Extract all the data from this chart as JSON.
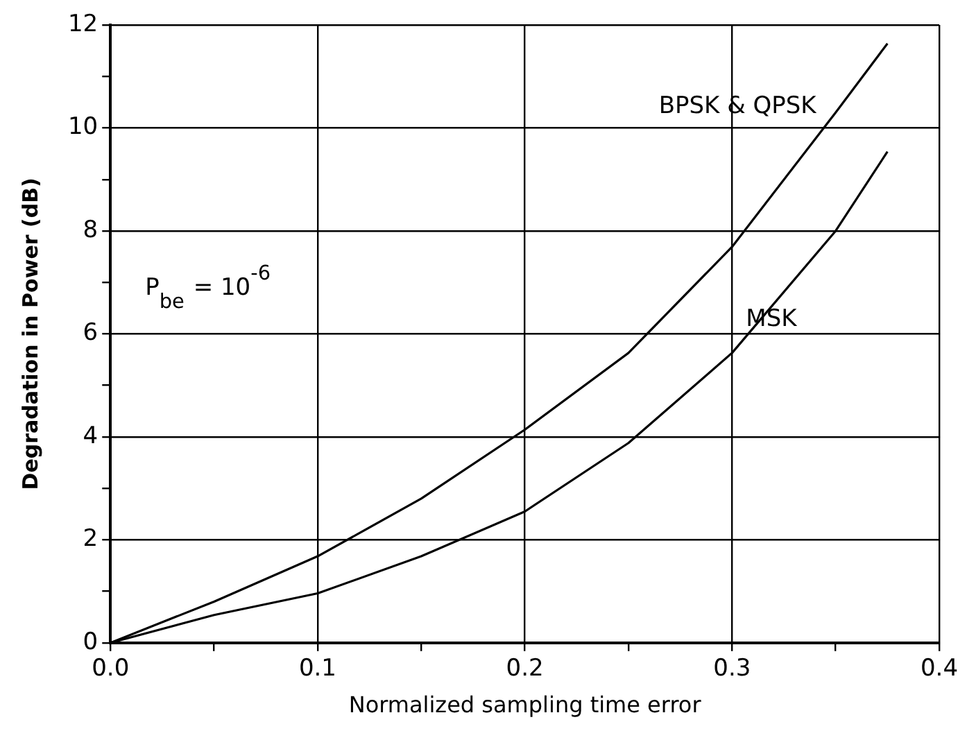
{
  "chart_data": {
    "type": "line",
    "xlabel": "Normalized sampling time error",
    "ylabel": "Degradation in Power (dB)",
    "x": [
      0,
      0.05,
      0.1,
      0.15,
      0.2,
      0.25,
      0.3,
      0.35,
      0.375
    ],
    "series": [
      {
        "name": "BPSK & QPSK",
        "color": "#000000",
        "values": [
          0,
          0.8,
          1.68,
          2.8,
          4.14,
          5.63,
          7.69,
          10.3,
          11.64
        ]
      },
      {
        "name": "MSK",
        "color": "#000000",
        "values": [
          0,
          0.54,
          0.96,
          1.68,
          2.55,
          3.88,
          5.63,
          8.0,
          9.54
        ]
      }
    ],
    "xlim": [
      0,
      0.4
    ],
    "xticks": [
      {
        "value": 0,
        "label": "0.0"
      },
      {
        "value": 0.05,
        "label": null
      },
      0.1,
      {
        "value": 0.15,
        "label": null
      },
      0.2,
      {
        "value": 0.25,
        "label": null
      },
      0.3,
      {
        "value": 0.35,
        "label": null
      },
      0.4
    ],
    "ylim": [
      0,
      12
    ],
    "yticks": [
      0,
      {
        "value": 1,
        "label": null
      },
      2,
      {
        "value": 3,
        "label": null
      },
      4,
      {
        "value": 5,
        "label": null
      },
      6,
      {
        "value": 7,
        "label": null
      },
      8,
      {
        "value": 9,
        "label": null
      },
      10,
      {
        "value": 11,
        "label": null
      },
      12
    ],
    "grid": true,
    "marker": "none",
    "line_style": "solid",
    "annotations": [
      "P$_{be}$ = 10$^{-6}$"
    ]
  }
}
